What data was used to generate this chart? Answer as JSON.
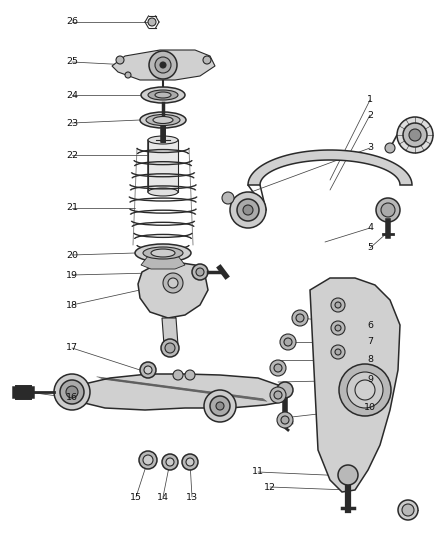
{
  "bg_color": "#ffffff",
  "dc": "#2a2a2a",
  "lc": "#555555",
  "gray_fill": "#d0d0d0",
  "gray_mid": "#b8b8b8",
  "gray_dark": "#909090",
  "labels_left": [
    [
      "26",
      57,
      22
    ],
    [
      "25",
      57,
      62
    ],
    [
      "24",
      57,
      95
    ],
    [
      "23",
      57,
      123
    ],
    [
      "22",
      57,
      158
    ],
    [
      "21",
      57,
      210
    ],
    [
      "20",
      57,
      258
    ],
    [
      "19",
      57,
      278
    ],
    [
      "18",
      57,
      305
    ],
    [
      "17",
      57,
      348
    ],
    [
      "16",
      57,
      398
    ]
  ],
  "labels_right": [
    [
      "1",
      385,
      100
    ],
    [
      "2",
      385,
      115
    ],
    [
      "3",
      385,
      148
    ],
    [
      "4",
      385,
      228
    ],
    [
      "5",
      385,
      248
    ],
    [
      "6",
      385,
      325
    ],
    [
      "7",
      385,
      342
    ],
    [
      "8",
      385,
      360
    ],
    [
      "9",
      385,
      380
    ],
    [
      "10",
      385,
      408
    ]
  ],
  "labels_bottom": [
    [
      "11",
      248,
      473
    ],
    [
      "12",
      262,
      488
    ],
    [
      "13",
      188,
      500
    ],
    [
      "14",
      160,
      500
    ],
    [
      "15",
      133,
      500
    ]
  ]
}
